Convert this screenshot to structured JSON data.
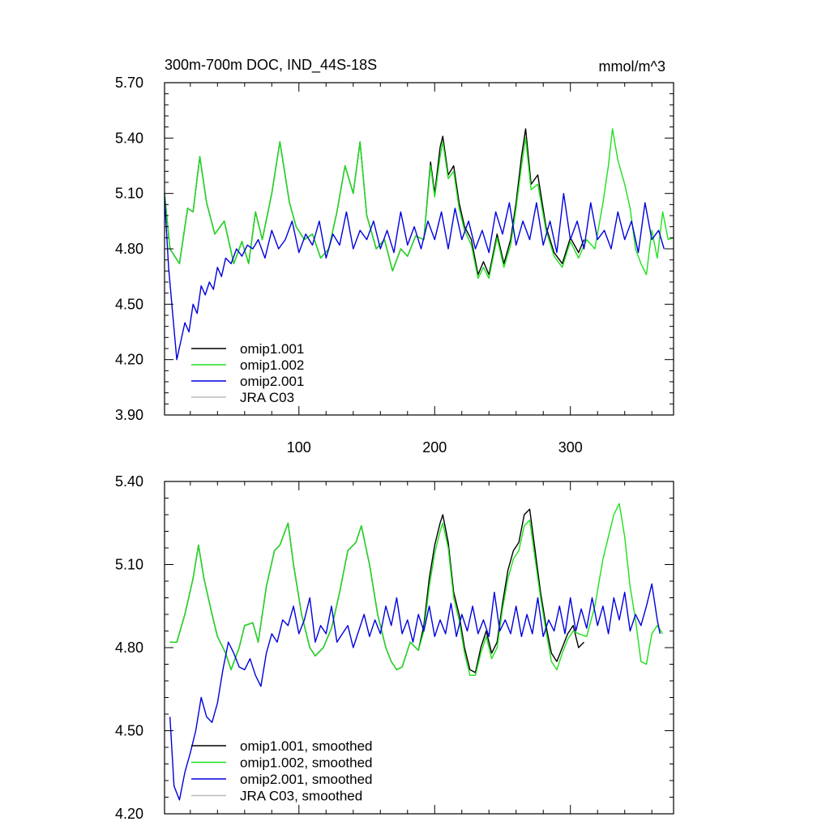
{
  "chart_data": [
    {
      "type": "line",
      "title": "300m-700m DOC, IND_44S-18S",
      "units": "mmol/m^3",
      "xlabel": "",
      "ylabel": "",
      "xlim": [
        1,
        376
      ],
      "ylim": [
        3.9,
        5.7
      ],
      "x_ticks": [
        100,
        200,
        300
      ],
      "x_tick_labels": [
        "100",
        "200",
        "300"
      ],
      "y_ticks": [
        3.9,
        4.2,
        4.5,
        4.8,
        5.1,
        5.4,
        5.7
      ],
      "y_tick_labels": [
        "3.90",
        "4.20",
        "4.50",
        "4.80",
        "5.10",
        "5.40",
        "5.70"
      ],
      "legend_position": "bottom-left",
      "series": [
        {
          "name": "omip1.001",
          "color": "#000000",
          "x": [
            1,
            5,
            12,
            18,
            22,
            27,
            32,
            38,
            45,
            52,
            58,
            63,
            68,
            73,
            80,
            86,
            93,
            98,
            104,
            110,
            116,
            122,
            128,
            134,
            140,
            145,
            150,
            157,
            163,
            169,
            175,
            180,
            186,
            192,
            197,
            200,
            204,
            206,
            210,
            214,
            218,
            222,
            227,
            232,
            236,
            240,
            246,
            251,
            256,
            260,
            264,
            267,
            271,
            276,
            282,
            288,
            294,
            300,
            306,
            310
          ],
          "values": [
            5.1,
            4.8,
            4.72,
            5.02,
            5.0,
            5.3,
            5.05,
            4.88,
            4.95,
            4.72,
            4.84,
            4.72,
            5.0,
            4.85,
            5.1,
            5.38,
            5.05,
            4.92,
            4.85,
            4.88,
            4.75,
            4.8,
            5.0,
            5.25,
            5.1,
            5.38,
            4.98,
            4.8,
            4.85,
            4.68,
            4.8,
            4.76,
            4.87,
            4.85,
            5.27,
            5.1,
            5.35,
            5.41,
            5.2,
            5.25,
            5.05,
            4.92,
            4.85,
            4.66,
            4.73,
            4.66,
            4.88,
            4.72,
            4.85,
            5.05,
            5.3,
            5.45,
            5.15,
            5.2,
            4.92,
            4.78,
            4.72,
            4.86,
            4.78,
            4.85
          ]
        },
        {
          "name": "omip1.002",
          "color": "#1ee01e",
          "x": [
            1,
            5,
            12,
            18,
            22,
            27,
            32,
            38,
            45,
            52,
            58,
            63,
            68,
            73,
            80,
            86,
            93,
            98,
            104,
            110,
            116,
            122,
            128,
            134,
            140,
            145,
            150,
            157,
            163,
            169,
            175,
            180,
            186,
            192,
            197,
            200,
            204,
            206,
            210,
            214,
            218,
            222,
            227,
            232,
            236,
            240,
            246,
            251,
            256,
            260,
            264,
            267,
            271,
            276,
            282,
            288,
            294,
            300,
            306,
            312,
            318,
            324,
            328,
            331,
            335,
            340,
            344,
            348,
            352,
            356,
            360,
            364,
            368,
            372,
            376
          ],
          "values": [
            5.1,
            4.8,
            4.72,
            5.02,
            5.0,
            5.3,
            5.05,
            4.88,
            4.95,
            4.72,
            4.84,
            4.72,
            5.0,
            4.85,
            5.1,
            5.38,
            5.05,
            4.92,
            4.85,
            4.88,
            4.75,
            4.8,
            5.0,
            5.25,
            5.1,
            5.38,
            4.98,
            4.8,
            4.85,
            4.68,
            4.8,
            4.76,
            4.87,
            4.85,
            5.25,
            5.08,
            5.3,
            5.38,
            5.18,
            5.22,
            5.02,
            4.9,
            4.82,
            4.64,
            4.7,
            4.64,
            4.86,
            4.7,
            4.82,
            5.02,
            5.25,
            5.4,
            5.12,
            5.15,
            4.9,
            4.76,
            4.7,
            4.84,
            4.75,
            4.85,
            4.8,
            5.05,
            5.25,
            5.45,
            5.28,
            5.15,
            5.02,
            4.8,
            4.72,
            4.66,
            4.9,
            4.75,
            5.0,
            4.85,
            4.86
          ]
        },
        {
          "name": "omip2.001",
          "color": "#0000dd",
          "x": [
            1,
            4,
            7,
            10,
            13,
            16,
            19,
            22,
            25,
            28,
            31,
            34,
            37,
            40,
            43,
            46,
            50,
            54,
            58,
            62,
            66,
            70,
            75,
            80,
            85,
            90,
            95,
            100,
            105,
            110,
            115,
            120,
            125,
            130,
            135,
            140,
            145,
            150,
            155,
            160,
            165,
            170,
            175,
            180,
            185,
            190,
            195,
            200,
            205,
            210,
            215,
            220,
            225,
            230,
            235,
            240,
            245,
            250,
            255,
            260,
            265,
            270,
            275,
            280,
            285,
            290,
            295,
            300,
            305,
            310,
            315,
            320,
            325,
            330,
            335,
            340,
            345,
            350,
            355,
            360,
            365,
            369
          ],
          "values": [
            5.08,
            4.7,
            4.45,
            4.2,
            4.3,
            4.4,
            4.35,
            4.5,
            4.45,
            4.6,
            4.55,
            4.62,
            4.58,
            4.7,
            4.65,
            4.75,
            4.72,
            4.8,
            4.76,
            4.82,
            4.8,
            4.85,
            4.75,
            4.9,
            4.8,
            4.85,
            4.95,
            4.78,
            4.88,
            4.82,
            4.95,
            4.75,
            4.88,
            4.82,
            5.0,
            4.8,
            4.9,
            4.85,
            4.95,
            4.8,
            4.9,
            4.78,
            5.0,
            4.82,
            4.92,
            4.8,
            4.95,
            4.85,
            5.0,
            4.8,
            5.02,
            4.85,
            4.95,
            4.8,
            4.9,
            4.78,
            5.0,
            4.88,
            5.05,
            4.82,
            4.95,
            4.85,
            5.05,
            4.82,
            4.95,
            4.78,
            5.1,
            4.85,
            4.95,
            4.8,
            5.05,
            4.85,
            4.9,
            4.8,
            5.0,
            4.85,
            4.95,
            4.78,
            5.05,
            4.85,
            4.9,
            4.8
          ]
        },
        {
          "name": "JRA C03",
          "color": "#bbbbbb",
          "x": [],
          "values": []
        }
      ]
    },
    {
      "type": "line",
      "title": "",
      "xlabel": "",
      "ylabel": "",
      "xlim": [
        1,
        376
      ],
      "ylim": [
        4.2,
        5.4
      ],
      "x_ticks": [
        100,
        200,
        300
      ],
      "x_tick_labels": [],
      "y_ticks": [
        4.2,
        4.5,
        4.8,
        5.1,
        5.4
      ],
      "y_tick_labels": [
        "4.20",
        "4.50",
        "4.80",
        "5.10",
        "5.40"
      ],
      "legend_position": "bottom-left",
      "series": [
        {
          "name": "omip1.001, smoothed",
          "color": "#000000",
          "x": [
            5,
            10,
            16,
            22,
            26,
            30,
            36,
            40,
            46,
            50,
            56,
            60,
            66,
            70,
            76,
            82,
            86,
            92,
            96,
            102,
            108,
            112,
            118,
            124,
            130,
            136,
            142,
            146,
            152,
            158,
            164,
            168,
            172,
            176,
            182,
            188,
            192,
            196,
            200,
            204,
            206,
            210,
            214,
            218,
            222,
            226,
            230,
            234,
            238,
            242,
            246,
            250,
            254,
            258,
            262,
            266,
            270,
            274,
            278,
            282,
            286,
            290,
            294,
            298,
            302,
            306,
            310
          ],
          "values": [
            4.82,
            4.82,
            4.92,
            5.05,
            5.17,
            5.05,
            4.92,
            4.84,
            4.78,
            4.72,
            4.8,
            4.88,
            4.89,
            4.82,
            5.02,
            5.15,
            5.17,
            5.25,
            5.1,
            4.92,
            4.8,
            4.77,
            4.8,
            4.87,
            5.0,
            5.15,
            5.18,
            5.24,
            5.1,
            4.92,
            4.8,
            4.75,
            4.72,
            4.73,
            4.82,
            4.79,
            4.88,
            5.05,
            5.17,
            5.25,
            5.28,
            5.18,
            5.0,
            4.92,
            4.8,
            4.72,
            4.71,
            4.8,
            4.86,
            4.78,
            4.82,
            4.96,
            5.08,
            5.15,
            5.18,
            5.28,
            5.3,
            5.15,
            5.0,
            4.88,
            4.78,
            4.75,
            4.8,
            4.85,
            4.88,
            4.8,
            4.82
          ]
        },
        {
          "name": "omip1.002, smoothed",
          "color": "#1ee01e",
          "x": [
            5,
            10,
            16,
            22,
            26,
            30,
            36,
            40,
            46,
            50,
            56,
            60,
            66,
            70,
            76,
            82,
            86,
            92,
            96,
            102,
            108,
            112,
            118,
            124,
            130,
            136,
            142,
            146,
            152,
            158,
            164,
            168,
            172,
            176,
            182,
            188,
            192,
            196,
            200,
            204,
            206,
            210,
            214,
            218,
            222,
            226,
            230,
            234,
            238,
            242,
            246,
            250,
            254,
            258,
            262,
            266,
            270,
            274,
            278,
            282,
            286,
            290,
            294,
            298,
            302,
            306,
            312,
            318,
            324,
            328,
            332,
            336,
            340,
            344,
            348,
            352,
            356,
            360,
            364,
            368
          ],
          "values": [
            4.82,
            4.82,
            4.92,
            5.05,
            5.17,
            5.05,
            4.92,
            4.84,
            4.78,
            4.72,
            4.8,
            4.88,
            4.89,
            4.82,
            5.02,
            5.15,
            5.17,
            5.25,
            5.1,
            4.92,
            4.8,
            4.77,
            4.8,
            4.87,
            5.0,
            5.15,
            5.18,
            5.24,
            5.1,
            4.92,
            4.8,
            4.75,
            4.72,
            4.73,
            4.82,
            4.79,
            4.86,
            5.02,
            5.14,
            5.22,
            5.25,
            5.16,
            4.98,
            4.9,
            4.78,
            4.7,
            4.7,
            4.78,
            4.84,
            4.76,
            4.8,
            4.94,
            5.05,
            5.12,
            5.15,
            5.24,
            5.26,
            5.12,
            4.98,
            4.86,
            4.75,
            4.72,
            4.78,
            4.83,
            4.86,
            4.85,
            4.84,
            4.95,
            5.12,
            5.2,
            5.28,
            5.32,
            5.2,
            5.02,
            4.9,
            4.75,
            4.74,
            4.85,
            4.88,
            4.85
          ]
        },
        {
          "name": "omip2.001, smoothed",
          "color": "#0000dd",
          "x": [
            5,
            8,
            12,
            16,
            20,
            24,
            28,
            32,
            36,
            40,
            44,
            48,
            52,
            56,
            60,
            64,
            68,
            72,
            76,
            80,
            84,
            88,
            92,
            96,
            100,
            104,
            108,
            112,
            116,
            120,
            124,
            128,
            132,
            136,
            140,
            144,
            148,
            152,
            156,
            160,
            164,
            168,
            172,
            176,
            180,
            184,
            188,
            192,
            196,
            200,
            204,
            208,
            212,
            216,
            220,
            224,
            228,
            232,
            236,
            240,
            244,
            248,
            252,
            256,
            260,
            264,
            268,
            272,
            276,
            280,
            284,
            288,
            292,
            296,
            300,
            304,
            308,
            312,
            316,
            320,
            324,
            328,
            332,
            336,
            340,
            344,
            348,
            352,
            356,
            360,
            364,
            366
          ],
          "values": [
            4.55,
            4.3,
            4.25,
            4.35,
            4.42,
            4.5,
            4.62,
            4.55,
            4.53,
            4.6,
            4.72,
            4.82,
            4.78,
            4.73,
            4.72,
            4.76,
            4.7,
            4.66,
            4.78,
            4.85,
            4.82,
            4.9,
            4.88,
            4.95,
            4.85,
            4.9,
            4.98,
            4.82,
            4.88,
            4.85,
            4.95,
            4.82,
            4.85,
            4.88,
            4.8,
            4.86,
            4.92,
            4.84,
            4.9,
            4.85,
            4.95,
            4.88,
            4.98,
            4.85,
            4.9,
            4.82,
            4.92,
            4.86,
            4.95,
            4.84,
            4.9,
            4.85,
            4.96,
            4.84,
            4.92,
            4.86,
            4.95,
            4.85,
            4.9,
            4.84,
            5.0,
            4.86,
            4.9,
            4.85,
            4.95,
            4.84,
            4.92,
            4.85,
            4.98,
            4.84,
            4.9,
            4.86,
            4.95,
            4.85,
            4.98,
            4.86,
            4.94,
            4.87,
            4.98,
            4.88,
            4.95,
            4.85,
            4.98,
            4.9,
            5.0,
            4.86,
            4.92,
            4.88,
            4.95,
            5.03,
            4.9,
            4.85
          ]
        },
        {
          "name": "JRA C03, smoothed",
          "color": "#bbbbbb",
          "x": [],
          "values": []
        }
      ]
    }
  ]
}
